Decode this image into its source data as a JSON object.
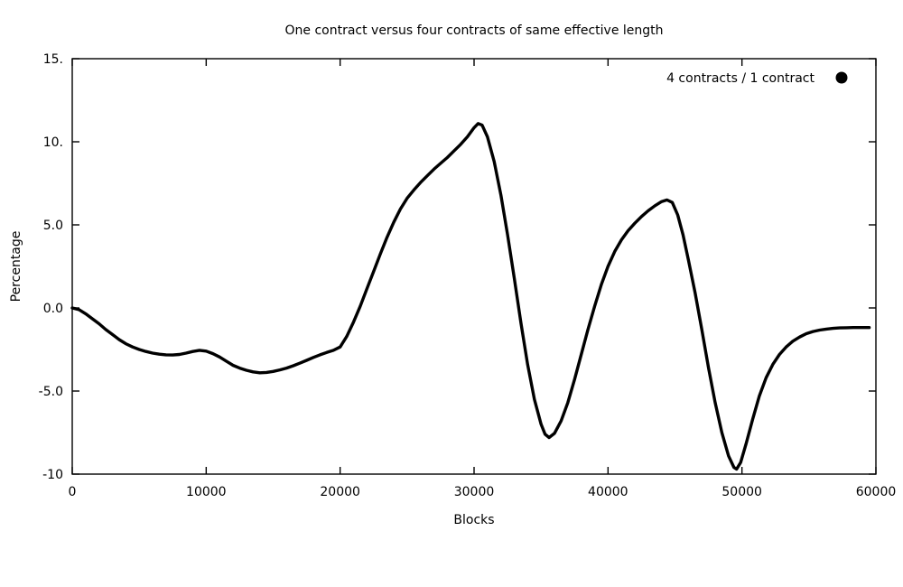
{
  "chart_data": {
    "type": "line",
    "title": "One contract versus four contracts of same effective length",
    "xlabel": "Blocks",
    "ylabel": "Percentage",
    "xlim": [
      0,
      60000
    ],
    "ylim": [
      -10,
      15
    ],
    "grid": false,
    "background": "#ffffff",
    "line_color": "#000000",
    "line_width": 3.4,
    "legend_position": "top-right-inside",
    "xticks": [
      {
        "v": 0,
        "label": "0"
      },
      {
        "v": 10000,
        "label": "10000"
      },
      {
        "v": 20000,
        "label": "20000"
      },
      {
        "v": 30000,
        "label": "30000"
      },
      {
        "v": 40000,
        "label": "40000"
      },
      {
        "v": 50000,
        "label": "50000"
      },
      {
        "v": 60000,
        "label": "60000"
      }
    ],
    "yticks": [
      {
        "v": -10,
        "label": "-10"
      },
      {
        "v": -5,
        "label": "-5.0"
      },
      {
        "v": 0,
        "label": "0.0"
      },
      {
        "v": 5,
        "label": "5.0"
      },
      {
        "v": 10,
        "label": "10."
      },
      {
        "v": 15,
        "label": "15."
      }
    ],
    "legend": [
      {
        "name": "4 contracts / 1 contract",
        "marker": "filled-circle",
        "color": "#000000"
      }
    ],
    "series": [
      {
        "name": "4 contracts / 1 contract",
        "points": [
          [
            0,
            0.0
          ],
          [
            500,
            -0.1
          ],
          [
            1000,
            -0.35
          ],
          [
            1500,
            -0.65
          ],
          [
            2000,
            -0.95
          ],
          [
            2500,
            -1.3
          ],
          [
            3000,
            -1.6
          ],
          [
            3500,
            -1.9
          ],
          [
            4000,
            -2.15
          ],
          [
            4500,
            -2.35
          ],
          [
            5000,
            -2.5
          ],
          [
            5500,
            -2.62
          ],
          [
            6000,
            -2.72
          ],
          [
            6500,
            -2.78
          ],
          [
            7000,
            -2.82
          ],
          [
            7500,
            -2.83
          ],
          [
            8000,
            -2.8
          ],
          [
            8500,
            -2.72
          ],
          [
            9000,
            -2.62
          ],
          [
            9500,
            -2.55
          ],
          [
            10000,
            -2.6
          ],
          [
            10500,
            -2.75
          ],
          [
            11000,
            -2.95
          ],
          [
            11500,
            -3.2
          ],
          [
            12000,
            -3.45
          ],
          [
            12500,
            -3.62
          ],
          [
            13000,
            -3.75
          ],
          [
            13500,
            -3.85
          ],
          [
            14000,
            -3.9
          ],
          [
            14500,
            -3.88
          ],
          [
            15000,
            -3.82
          ],
          [
            15500,
            -3.73
          ],
          [
            16000,
            -3.62
          ],
          [
            16500,
            -3.48
          ],
          [
            17000,
            -3.32
          ],
          [
            17500,
            -3.15
          ],
          [
            18000,
            -2.98
          ],
          [
            18500,
            -2.82
          ],
          [
            19000,
            -2.68
          ],
          [
            19500,
            -2.55
          ],
          [
            20000,
            -2.35
          ],
          [
            20500,
            -1.7
          ],
          [
            21000,
            -0.85
          ],
          [
            21500,
            0.1
          ],
          [
            22000,
            1.15
          ],
          [
            22500,
            2.2
          ],
          [
            23000,
            3.25
          ],
          [
            23500,
            4.25
          ],
          [
            24000,
            5.15
          ],
          [
            24500,
            5.95
          ],
          [
            25000,
            6.6
          ],
          [
            25500,
            7.1
          ],
          [
            26000,
            7.55
          ],
          [
            26500,
            7.95
          ],
          [
            27000,
            8.35
          ],
          [
            27500,
            8.7
          ],
          [
            28000,
            9.05
          ],
          [
            28500,
            9.45
          ],
          [
            29000,
            9.85
          ],
          [
            29500,
            10.3
          ],
          [
            30000,
            10.85
          ],
          [
            30300,
            11.1
          ],
          [
            30600,
            11.0
          ],
          [
            31000,
            10.3
          ],
          [
            31500,
            8.8
          ],
          [
            32000,
            6.8
          ],
          [
            32500,
            4.4
          ],
          [
            33000,
            1.8
          ],
          [
            33500,
            -0.9
          ],
          [
            34000,
            -3.4
          ],
          [
            34500,
            -5.5
          ],
          [
            35000,
            -7.0
          ],
          [
            35300,
            -7.6
          ],
          [
            35600,
            -7.8
          ],
          [
            36000,
            -7.55
          ],
          [
            36500,
            -6.8
          ],
          [
            37000,
            -5.7
          ],
          [
            37500,
            -4.3
          ],
          [
            38000,
            -2.8
          ],
          [
            38500,
            -1.3
          ],
          [
            39000,
            0.1
          ],
          [
            39500,
            1.4
          ],
          [
            40000,
            2.5
          ],
          [
            40500,
            3.4
          ],
          [
            41000,
            4.1
          ],
          [
            41500,
            4.65
          ],
          [
            42000,
            5.1
          ],
          [
            42500,
            5.5
          ],
          [
            43000,
            5.85
          ],
          [
            43500,
            6.15
          ],
          [
            44000,
            6.4
          ],
          [
            44400,
            6.5
          ],
          [
            44800,
            6.35
          ],
          [
            45200,
            5.6
          ],
          [
            45600,
            4.4
          ],
          [
            46000,
            2.9
          ],
          [
            46500,
            0.9
          ],
          [
            47000,
            -1.3
          ],
          [
            47500,
            -3.6
          ],
          [
            48000,
            -5.7
          ],
          [
            48500,
            -7.5
          ],
          [
            49000,
            -8.9
          ],
          [
            49400,
            -9.6
          ],
          [
            49600,
            -9.7
          ],
          [
            49900,
            -9.3
          ],
          [
            50300,
            -8.2
          ],
          [
            50800,
            -6.7
          ],
          [
            51300,
            -5.3
          ],
          [
            51800,
            -4.2
          ],
          [
            52300,
            -3.4
          ],
          [
            52800,
            -2.8
          ],
          [
            53300,
            -2.35
          ],
          [
            53800,
            -2.0
          ],
          [
            54300,
            -1.75
          ],
          [
            54800,
            -1.55
          ],
          [
            55300,
            -1.42
          ],
          [
            55800,
            -1.33
          ],
          [
            56300,
            -1.27
          ],
          [
            56800,
            -1.23
          ],
          [
            57300,
            -1.2
          ],
          [
            57800,
            -1.19
          ],
          [
            58300,
            -1.18
          ],
          [
            58800,
            -1.18
          ],
          [
            59300,
            -1.18
          ],
          [
            59500,
            -1.18
          ]
        ]
      }
    ]
  }
}
